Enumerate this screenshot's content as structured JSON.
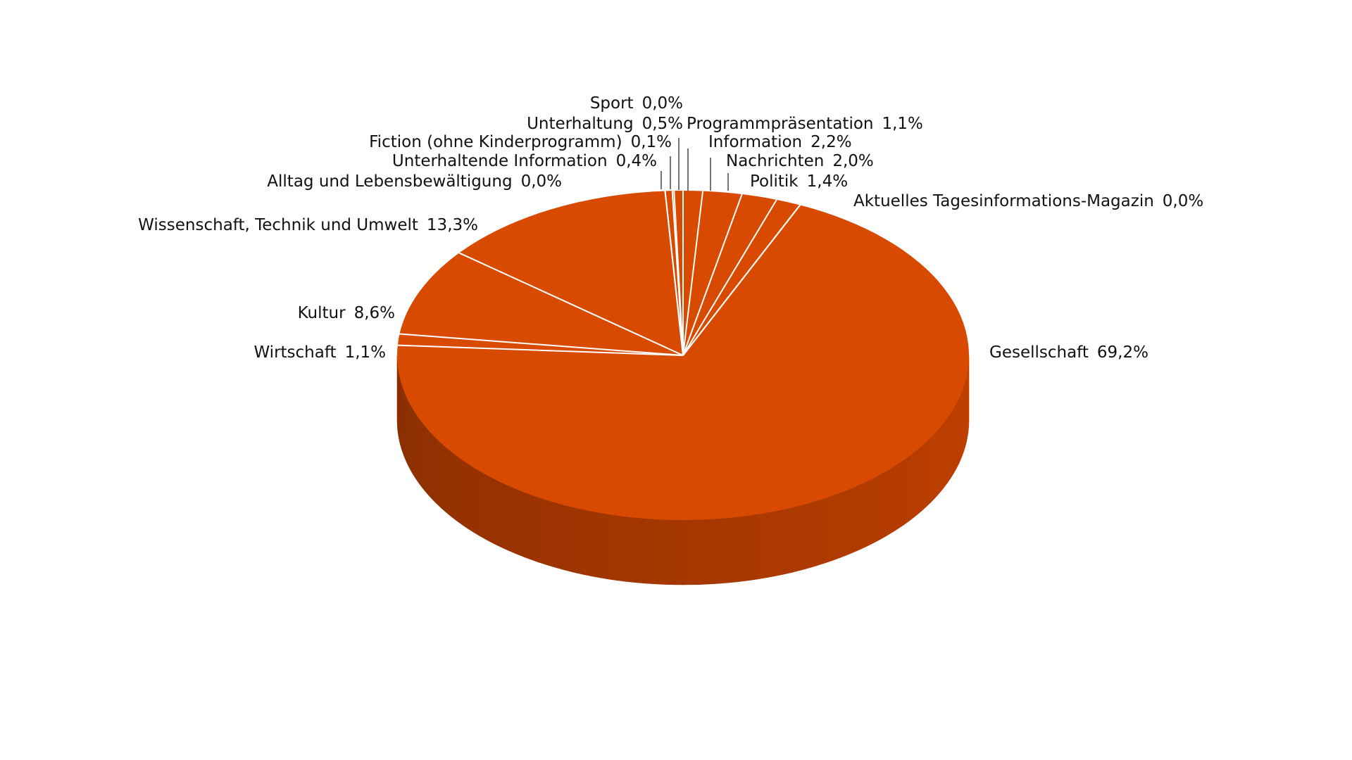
{
  "chart_data": {
    "type": "pie",
    "style": "3d",
    "start": "12 o'clock, clockwise",
    "colors": {
      "slice": "#d84a00",
      "side_light": "#c04000",
      "side_dark": "#8a2e00",
      "separator": "#ffffff",
      "text": "#111111"
    },
    "slices": [
      {
        "label": "Programmpräsentation",
        "value": 1.1,
        "value_text": "1,1%"
      },
      {
        "label": "Information",
        "value": 2.2,
        "value_text": "2,2%"
      },
      {
        "label": "Nachrichten",
        "value": 2.0,
        "value_text": "2,0%"
      },
      {
        "label": "Politik",
        "value": 1.4,
        "value_text": "1,4%"
      },
      {
        "label": "Aktuelles Tagesinformations-Magazin",
        "value": 0.0,
        "value_text": "0,0%"
      },
      {
        "label": "Gesellschaft",
        "value": 69.2,
        "value_text": "69,2%"
      },
      {
        "label": "Wirtschaft",
        "value": 1.1,
        "value_text": "1,1%"
      },
      {
        "label": "Kultur",
        "value": 8.6,
        "value_text": "8,6%"
      },
      {
        "label": "Wissenschaft, Technik und Umwelt",
        "value": 13.3,
        "value_text": "13,3%"
      },
      {
        "label": "Alltag und Lebensbewältigung",
        "value": 0.0,
        "value_text": "0,0%"
      },
      {
        "label": "Unterhaltende Information",
        "value": 0.4,
        "value_text": "0,4%"
      },
      {
        "label": "Fiction (ohne Kinderprogramm)",
        "value": 0.1,
        "value_text": "0,1%"
      },
      {
        "label": "Unterhaltung",
        "value": 0.5,
        "value_text": "0,5%"
      },
      {
        "label": "Sport",
        "value": 0.0,
        "value_text": "0,0%"
      }
    ]
  }
}
